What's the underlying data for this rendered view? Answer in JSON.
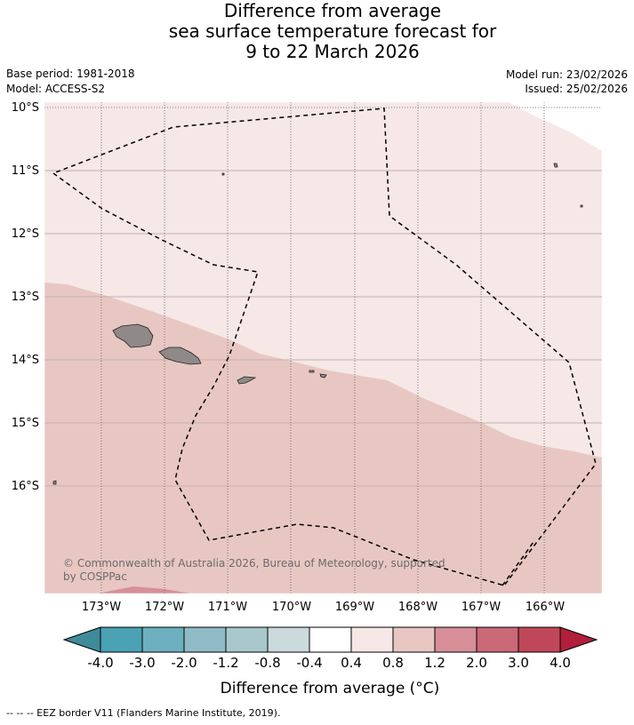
{
  "title": {
    "line1": "Difference from average",
    "line2": "sea surface temperature forecast for",
    "line3": "9 to 22 March 2026"
  },
  "meta": {
    "base_period": "Base period: 1981-2018",
    "model": "Model: ACCESS-S2",
    "model_run": "Model run: 23/02/2026",
    "issued": "Issued: 25/02/2026"
  },
  "map": {
    "lat_labels": [
      "10°S",
      "11°S",
      "12°S",
      "13°S",
      "14°S",
      "15°S",
      "16°S"
    ],
    "lon_labels": [
      "173°W",
      "172°W",
      "171°W",
      "170°W",
      "169°W",
      "168°W",
      "167°W",
      "166°W"
    ],
    "credit_line1": "© Commonwealth of Australia 2026, Bureau of Meteorology, supported",
    "credit_line2": "by COSPPac",
    "colors": {
      "anom_0_4_to_0_8": "#f5e8e7",
      "anom_0_8_to_1_2": "#e8c7c3",
      "anom_1_2_to_2_0": "#d78e97",
      "land": "#8f8a88",
      "eez": "#000000"
    }
  },
  "colorbar": {
    "ticks": [
      "-4.0",
      "-3.0",
      "-2.0",
      "-1.2",
      "-0.8",
      "-0.4",
      "0.4",
      "0.8",
      "1.2",
      "2.0",
      "3.0",
      "4.0"
    ],
    "colors": [
      "#3f8b99",
      "#4aa2b4",
      "#6db0c0",
      "#8fbbc6",
      "#a8c7cb",
      "#cadadd",
      "#ffffff",
      "#f5e8e7",
      "#e8c7c3",
      "#d78e97",
      "#cb6877",
      "#c04759",
      "#b01f3c"
    ],
    "label": "Difference from average (°C)"
  },
  "footer": "--  --  -- EEZ border V11 (Flanders Marine Institute, 2019)."
}
